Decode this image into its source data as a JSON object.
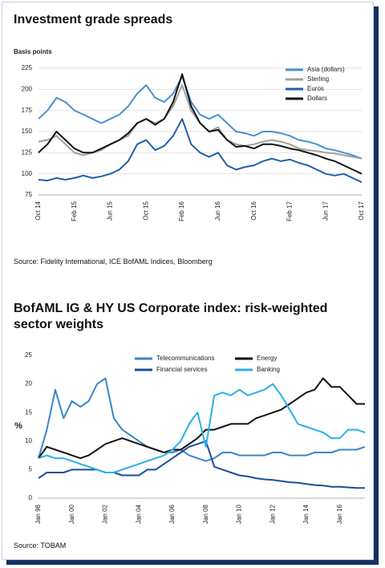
{
  "chart_data": [
    {
      "type": "line",
      "title": "Investment grade spreads",
      "ylabel": "Basis points",
      "categories": [
        "Oct 14",
        null,
        null,
        null,
        "Feb 15",
        null,
        null,
        null,
        "Jun 15",
        null,
        null,
        null,
        "Oct 15",
        null,
        null,
        null,
        "Feb 16",
        null,
        null,
        null,
        "Jun 16",
        null,
        null,
        null,
        "Oct 16",
        null,
        null,
        null,
        "Feb 17",
        null,
        null,
        null,
        "Jun 17",
        null,
        null,
        null,
        "Oct 17"
      ],
      "series": [
        {
          "name": "Asia (dollars)",
          "color": "#4a90d0",
          "values": [
            165,
            175,
            190,
            185,
            175,
            170,
            165,
            160,
            165,
            170,
            180,
            195,
            205,
            190,
            185,
            195,
            215,
            185,
            170,
            165,
            170,
            160,
            150,
            148,
            145,
            150,
            150,
            148,
            145,
            140,
            138,
            135,
            130,
            128,
            125,
            122,
            118
          ]
        },
        {
          "name": "Sterling",
          "color": "#a0a0a0",
          "values": [
            138,
            140,
            145,
            135,
            125,
            122,
            125,
            128,
            135,
            140,
            145,
            160,
            165,
            160,
            165,
            180,
            205,
            175,
            160,
            150,
            155,
            140,
            135,
            133,
            135,
            138,
            140,
            138,
            135,
            130,
            128,
            127,
            125,
            124,
            122,
            120,
            118
          ]
        },
        {
          "name": "Euros",
          "color": "#1f5fa8",
          "values": [
            93,
            92,
            95,
            93,
            95,
            98,
            95,
            97,
            100,
            105,
            115,
            135,
            140,
            128,
            133,
            145,
            165,
            135,
            125,
            120,
            125,
            110,
            105,
            108,
            110,
            115,
            118,
            115,
            117,
            113,
            110,
            105,
            100,
            98,
            100,
            95,
            90
          ]
        },
        {
          "name": "Dollars",
          "color": "#111111",
          "values": [
            125,
            135,
            150,
            140,
            130,
            125,
            125,
            130,
            135,
            140,
            148,
            160,
            165,
            158,
            165,
            185,
            218,
            180,
            160,
            150,
            152,
            140,
            132,
            133,
            130,
            135,
            135,
            133,
            130,
            128,
            125,
            122,
            118,
            115,
            110,
            105,
            100
          ]
        }
      ],
      "ylim": [
        75,
        225
      ],
      "yticks": [
        75,
        100,
        125,
        150,
        175,
        200,
        225
      ],
      "grid": true,
      "legend": "upper right",
      "source": "Source: Fidelity International, ICE BofAML Indices, Bloomberg"
    },
    {
      "type": "line",
      "title": "BofAML IG & HY US Corporate index: risk-weighted sector weights",
      "ylabel": "%",
      "categories": [
        "Jan 98",
        null,
        null,
        null,
        "Jan 00",
        null,
        null,
        null,
        "Jan 02",
        null,
        null,
        null,
        "Jan 04",
        null,
        null,
        null,
        "Jan 06",
        null,
        null,
        null,
        "Jan 08",
        null,
        null,
        null,
        "Jan 10",
        null,
        null,
        null,
        "Jan 12",
        null,
        null,
        null,
        "Jan 14",
        null,
        null,
        null,
        "Jan 16",
        null,
        null,
        null
      ],
      "series": [
        {
          "name": "Telecommunications",
          "color": "#3a86c8",
          "values": [
            7,
            12,
            19,
            14,
            17,
            16,
            17,
            20,
            21,
            14,
            12,
            11,
            10,
            9,
            8.5,
            8,
            8,
            8.5,
            7.5,
            7,
            6.5,
            7,
            8,
            8,
            7.5,
            7.5,
            7.5,
            7.5,
            8,
            8,
            7.5,
            7.5,
            7.5,
            8,
            8,
            8,
            8.5,
            8.5,
            8.5,
            9
          ]
        },
        {
          "name": "Energy",
          "color": "#111111",
          "values": [
            7,
            9,
            8.5,
            8,
            7.5,
            7,
            7.5,
            8.5,
            9.5,
            10,
            10.5,
            10,
            9.5,
            9,
            8.5,
            8,
            8.5,
            8.5,
            9.5,
            10.5,
            12,
            12,
            12.5,
            13,
            13,
            13,
            14,
            14.5,
            15,
            15.5,
            16.5,
            17.5,
            18.5,
            19,
            21,
            19.5,
            19.5,
            18,
            16.5,
            16.5
          ]
        },
        {
          "name": "Financial services",
          "color": "#1a4f9a",
          "values": [
            3.5,
            4.5,
            4.5,
            4.5,
            5,
            5,
            5,
            5,
            4.5,
            4.5,
            4,
            4,
            4,
            5,
            5,
            6,
            7,
            8,
            9,
            9.5,
            10,
            5.5,
            5,
            4.5,
            4,
            3.8,
            3.5,
            3.3,
            3.2,
            3,
            2.8,
            2.7,
            2.5,
            2.3,
            2.2,
            2,
            2,
            1.9,
            1.8,
            1.8
          ]
        },
        {
          "name": "Banking",
          "color": "#29b0e8",
          "values": [
            7,
            7.5,
            7,
            7,
            6.5,
            6,
            5.5,
            5,
            4.5,
            4.5,
            5,
            5.5,
            6,
            6.5,
            7,
            7.5,
            8.5,
            10,
            13,
            15,
            9,
            18,
            18.5,
            18,
            19,
            18,
            18.5,
            19,
            20,
            18,
            15.5,
            13,
            12.5,
            12,
            11.5,
            10.5,
            10.5,
            12,
            12,
            11.5
          ]
        }
      ],
      "ylim": [
        0,
        25
      ],
      "yticks": [
        0,
        5,
        10,
        15,
        20,
        25
      ],
      "grid": false,
      "legend": "upper center",
      "source": "Source: TOBAM"
    }
  ]
}
